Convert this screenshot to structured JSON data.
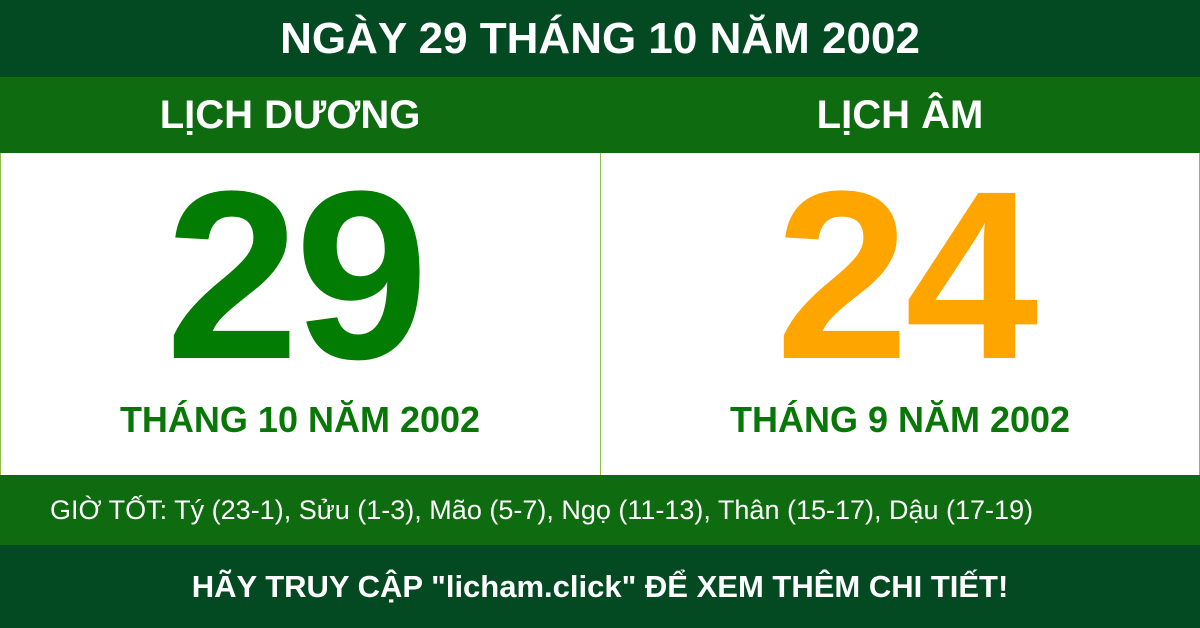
{
  "title": "NGÀY 29 THÁNG 10 NĂM 2002",
  "solar": {
    "heading": "LỊCH DƯƠNG",
    "day": "29",
    "month_year": "THÁNG 10 NĂM 2002",
    "color": "#037c03"
  },
  "lunar": {
    "heading": "LỊCH ÂM",
    "day": "24",
    "month_year": "THÁNG 9 NĂM 2002",
    "color": "#ffa500"
  },
  "good_hours": "GIỜ TỐT: Tý (23-1), Sửu (1-3), Mão (5-7), Ngọ (11-13), Thân (15-17), Dậu (17-19)",
  "footer": "HÃY TRUY CẬP \"licham.click\" ĐỂ XEM THÊM CHI TIẾT!"
}
